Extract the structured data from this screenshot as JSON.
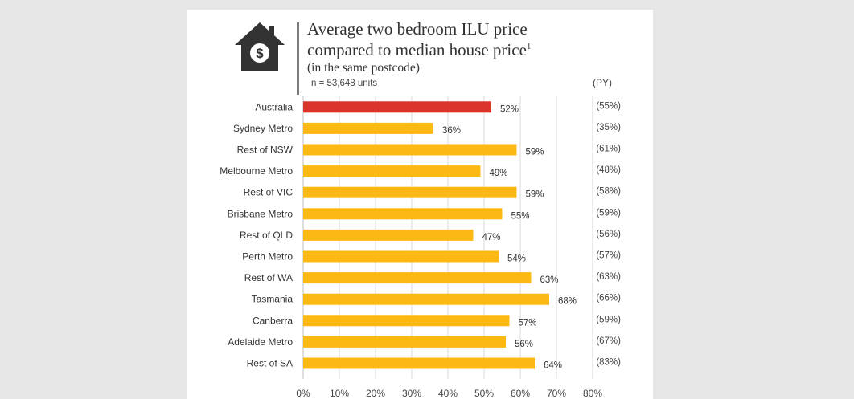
{
  "header": {
    "title_line1": "Average two bedroom ILU price",
    "title_line2": "compared to median house price",
    "title_footnote": "1",
    "subtitle": "(in the same postcode)",
    "sample_note": "n = 53,648 units",
    "prior_year_header": "(PY)",
    "icon": "house-dollar-icon"
  },
  "colors": {
    "highlight": "#d9332b",
    "bar": "#fdb913",
    "icon": "#333333",
    "gridline": "#d9d9d9"
  },
  "chart_data": {
    "type": "bar",
    "orientation": "horizontal",
    "categories": [
      "Australia",
      "Sydney Metro",
      "Rest of NSW",
      "Melbourne Metro",
      "Rest of VIC",
      "Brisbane Metro",
      "Rest of QLD",
      "Perth Metro",
      "Rest of WA",
      "Tasmania",
      "Canberra",
      "Adelaide Metro",
      "Rest of SA"
    ],
    "values": [
      52,
      36,
      59,
      49,
      59,
      55,
      47,
      54,
      63,
      68,
      57,
      56,
      64
    ],
    "value_labels": [
      "52%",
      "36%",
      "59%",
      "49%",
      "59%",
      "55%",
      "47%",
      "54%",
      "63%",
      "68%",
      "57%",
      "56%",
      "64%"
    ],
    "prior_year_labels": [
      "(55%)",
      "(35%)",
      "(61%)",
      "(48%)",
      "(58%)",
      "(59%)",
      "(56%)",
      "(57%)",
      "(63%)",
      "(66%)",
      "(59%)",
      "(67%)",
      "(83%)"
    ],
    "highlight_index": 0,
    "xlim": [
      0,
      80
    ],
    "x_ticks": [
      "0%",
      "10%",
      "20%",
      "30%",
      "40%",
      "50%",
      "60%",
      "70%",
      "80%"
    ],
    "grid": true
  }
}
